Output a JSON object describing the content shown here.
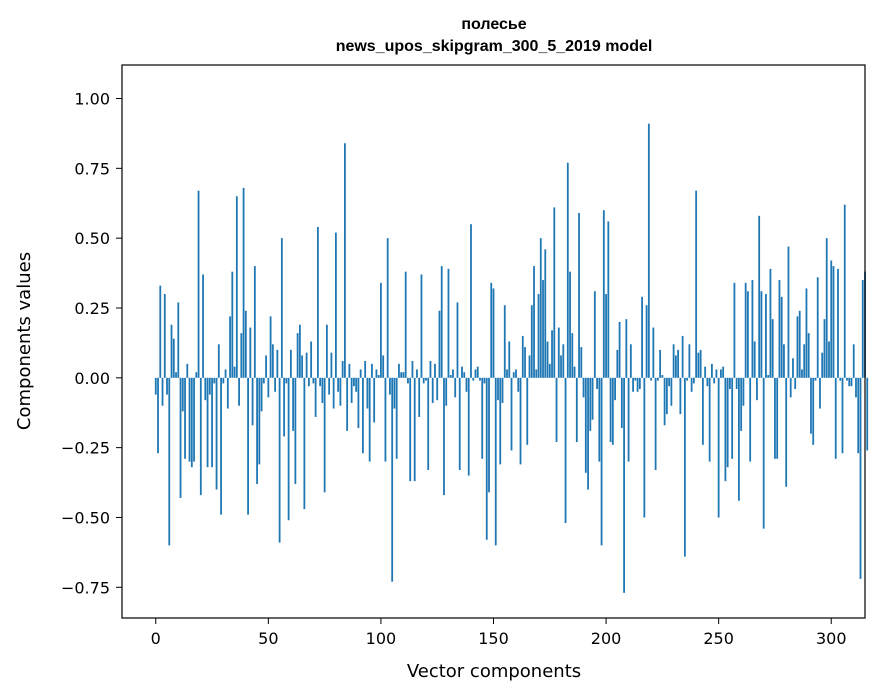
{
  "chart_data": {
    "type": "bar",
    "title": "полесье",
    "subtitle": "news_upos_skipgram_300_5_2019 model",
    "xlabel": "Vector components",
    "ylabel": "Components values",
    "xlim": [
      -15,
      315
    ],
    "ylim": [
      -0.86,
      1.12
    ],
    "x_ticks": [
      0,
      50,
      100,
      150,
      200,
      250,
      300
    ],
    "y_ticks": [
      -0.75,
      -0.5,
      -0.25,
      0.0,
      0.25,
      0.5,
      0.75,
      1.0
    ],
    "x_tick_labels": [
      "0",
      "50",
      "100",
      "150",
      "200",
      "250",
      "300"
    ],
    "y_tick_labels": [
      "−0.75",
      "−0.50",
      "−0.25",
      "0.00",
      "0.25",
      "0.50",
      "0.75",
      "1.00"
    ],
    "grid": false,
    "bar_color": "#1f77b4",
    "values": [
      -0.06,
      -0.27,
      0.33,
      -0.1,
      0.3,
      -0.06,
      -0.6,
      0.19,
      0.14,
      0.02,
      0.27,
      -0.43,
      -0.12,
      -0.29,
      0.05,
      -0.3,
      -0.32,
      -0.3,
      0.02,
      0.67,
      -0.42,
      0.37,
      -0.08,
      -0.32,
      -0.06,
      -0.32,
      -0.02,
      -0.4,
      0.12,
      -0.49,
      -0.02,
      0.03,
      -0.11,
      0.22,
      0.38,
      0.04,
      0.65,
      -0.1,
      0.16,
      0.68,
      0.24,
      -0.49,
      0.18,
      -0.17,
      0.4,
      -0.38,
      -0.31,
      -0.12,
      -0.02,
      0.08,
      -0.07,
      0.22,
      0.12,
      -0.05,
      0.1,
      -0.59,
      0.5,
      -0.21,
      -0.02,
      -0.51,
      0.1,
      -0.19,
      -0.38,
      0.16,
      0.19,
      0.08,
      -0.47,
      0.09,
      -0.03,
      0.13,
      -0.02,
      -0.14,
      0.54,
      -0.03,
      -0.09,
      -0.41,
      0.19,
      -0.06,
      0.09,
      -0.11,
      0.52,
      -0.05,
      -0.1,
      0.06,
      0.84,
      -0.19,
      0.05,
      -0.09,
      -0.03,
      -0.05,
      -0.18,
      0.03,
      -0.27,
      0.06,
      -0.11,
      -0.3,
      0.05,
      -0.16,
      0.03,
      0.01,
      0.34,
      0.08,
      -0.3,
      0.5,
      -0.06,
      -0.73,
      -0.11,
      -0.29,
      0.05,
      0.02,
      0.02,
      0.38,
      -0.02,
      -0.37,
      0.06,
      -0.37,
      0.03,
      -0.14,
      0.37,
      -0.02,
      -0.01,
      -0.33,
      0.06,
      -0.09,
      0.05,
      -0.08,
      0.24,
      0.4,
      -0.42,
      -0.1,
      0.39,
      0.01,
      0.03,
      -0.07,
      0.27,
      -0.33,
      0.04,
      0.02,
      -0.05,
      -0.35,
      0.55,
      -0.01,
      0.03,
      0.04,
      -0.01,
      -0.29,
      -0.02,
      -0.58,
      -0.41,
      0.34,
      0.32,
      -0.6,
      -0.08,
      -0.31,
      -0.09,
      0.26,
      0.03,
      0.13,
      -0.26,
      0.02,
      0.03,
      -0.05,
      -0.31,
      0.15,
      0.11,
      -0.24,
      0.08,
      0.26,
      0.4,
      0.03,
      0.3,
      0.5,
      0.35,
      0.46,
      0.13,
      0.05,
      0.17,
      0.61,
      -0.23,
      0.18,
      0.08,
      0.12,
      -0.52,
      0.77,
      0.38,
      0.16,
      0.04,
      -0.23,
      0.59,
      0.11,
      -0.07,
      -0.34,
      -0.4,
      -0.19,
      -0.15,
      0.31,
      -0.04,
      -0.3,
      -0.6,
      0.6,
      0.3,
      0.56,
      -0.23,
      -0.24,
      -0.08,
      0.1,
      0.2,
      -0.18,
      -0.77,
      0.21,
      -0.3,
      0.12,
      -0.05,
      -0.01,
      -0.05,
      -0.04,
      0.29,
      -0.5,
      0.26,
      0.91,
      -0.01,
      0.18,
      -0.33,
      -0.01,
      0.1,
      0.01,
      -0.17,
      -0.13,
      -0.03,
      -0.1,
      0.12,
      0.08,
      0.1,
      -0.13,
      0.15,
      -0.64,
      -0.01,
      0.12,
      -0.05,
      -0.02,
      0.67,
      0.09,
      0.1,
      -0.24,
      0.04,
      -0.03,
      -0.3,
      0.05,
      -0.02,
      0.03,
      -0.5,
      0.03,
      0.04,
      -0.37,
      -0.32,
      -0.04,
      -0.29,
      0.34,
      -0.04,
      -0.44,
      -0.19,
      -0.1,
      0.34,
      0.31,
      -0.3,
      0.35,
      0.13,
      -0.08,
      0.58,
      0.31,
      -0.54,
      0.3,
      0.01,
      0.39,
      0.21,
      -0.29,
      -0.29,
      0.35,
      0.29,
      0.12,
      -0.39,
      0.47,
      -0.07,
      0.07,
      -0.04,
      0.22,
      0.24,
      0.03,
      0.12,
      0.32,
      0.16,
      -0.2,
      -0.24,
      -0.01,
      0.36,
      -0.11,
      0.09,
      0.21,
      0.5,
      0.13,
      0.42,
      0.4,
      -0.29,
      0.39,
      -0.01,
      -0.27,
      0.62,
      -0.01,
      -0.03,
      -0.03,
      0.12,
      -0.07,
      -0.27,
      -0.72,
      0.35,
      0.38,
      -0.26
    ]
  }
}
